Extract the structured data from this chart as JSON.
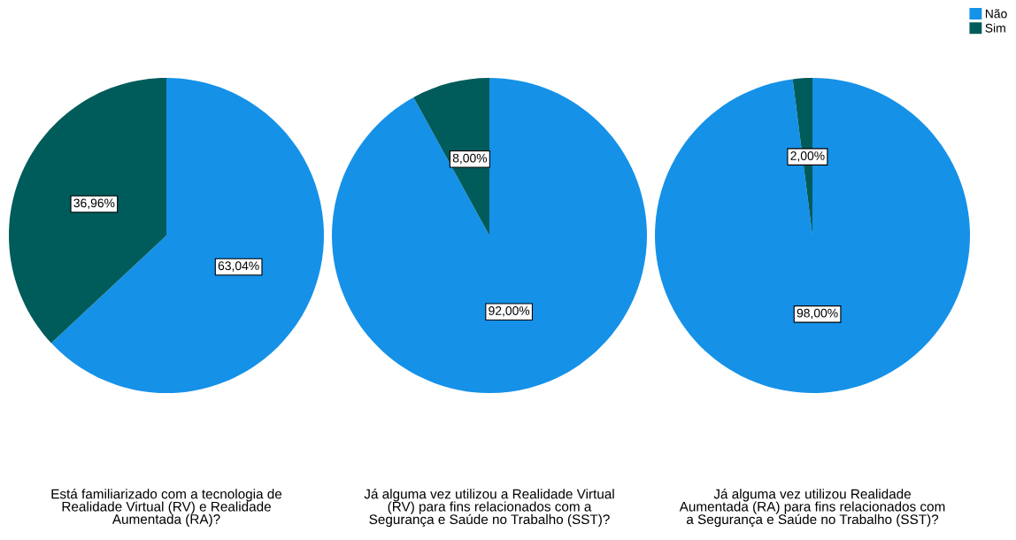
{
  "chart_data": [
    {
      "type": "pie",
      "title": "Está familiarizado com a tecnologia de Realidade Virtual (RV) e Realidade Aumentada (RA)?",
      "categories": [
        "Não",
        "Sim"
      ],
      "values": [
        63.04,
        36.96
      ],
      "colors": [
        "#1591e8",
        "#005b5b"
      ],
      "value_labels": [
        "63,04%",
        "36,96%"
      ],
      "legend": "top right"
    },
    {
      "type": "pie",
      "title": "Já alguma vez utilizou a Realidade Virtual (RV) para fins relacionados com a Segurança e Saúde no Trabalho (SST)?",
      "categories": [
        null,
        null
      ],
      "values": [
        92.0,
        8.0
      ],
      "colors": [
        "#1591e8",
        "#005b5b"
      ],
      "value_labels": [
        "92,00%",
        "8,00%"
      ],
      "legend": false
    },
    {
      "type": "pie",
      "title": "Já alguma vez utilizou Realidade Aumentada (RA) para fins relacionados com a Segurança e Saúde no Trabalho (SST)?",
      "categories": [
        null,
        null
      ],
      "values": [
        98.0,
        2.0
      ],
      "colors": [
        "#1591e8",
        "#005b5b"
      ],
      "value_labels": [
        "98,00%",
        "2,00%"
      ],
      "legend": false
    }
  ]
}
